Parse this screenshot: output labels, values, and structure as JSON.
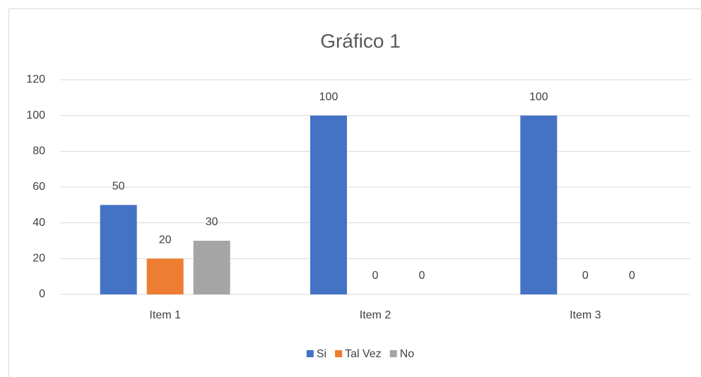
{
  "chart_data": {
    "type": "bar",
    "title": "Gráfico 1",
    "categories": [
      "Item 1",
      "Item 2",
      "Item 3"
    ],
    "series": [
      {
        "name": "Si",
        "color": "#4472c4",
        "values": [
          50,
          100,
          100
        ]
      },
      {
        "name": "Tal Vez",
        "color": "#ed7d31",
        "values": [
          20,
          0,
          0
        ]
      },
      {
        "name": "No",
        "color": "#a5a5a5",
        "values": [
          30,
          0,
          0
        ]
      }
    ],
    "ylim": [
      0,
      120
    ],
    "yticks": [
      0,
      20,
      40,
      60,
      80,
      100,
      120
    ],
    "grid": true,
    "legend": "bottom",
    "data_labels": true
  }
}
